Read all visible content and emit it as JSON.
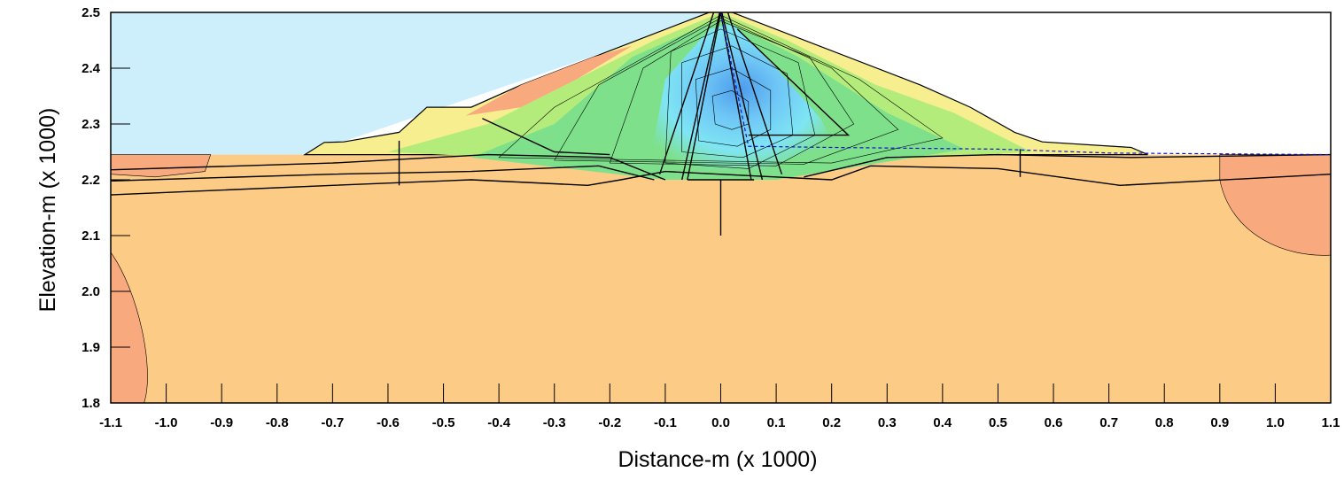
{
  "chart_data": {
    "type": "contour-section",
    "xlabel": "Distance-m (x  1000)",
    "ylabel": "Elevation-m (x  1000)",
    "xlim": [
      -1.1,
      1.1
    ],
    "ylim": [
      1.8,
      2.5
    ],
    "x_ticks": [
      "-1.1",
      "-1.0",
      "-0.9",
      "-0.8",
      "-0.7",
      "-0.6",
      "-0.5",
      "-0.4",
      "-0.3",
      "-0.2",
      "-0.1",
      "0.0",
      "0.1",
      "0.2",
      "0.3",
      "0.4",
      "0.5",
      "0.6",
      "0.7",
      "0.8",
      "0.9",
      "1.0",
      "1.1"
    ],
    "y_ticks": [
      "1.8",
      "1.9",
      "2.0",
      "2.1",
      "2.2",
      "2.3",
      "2.4",
      "2.5"
    ],
    "reservoir_level": 2.5,
    "tailwater_level": 2.245,
    "colors": {
      "reservoir": "#cdeefb",
      "foundation": "#fccb85",
      "foundation_dark": "#f8a97e",
      "shell": "#f7ee8f",
      "contour_mid": "#b3ec7b",
      "contour_green": "#7ee08b",
      "core_light": "#7fe5f4",
      "core": "#6fc7f6",
      "core_deep": "#4d9ceb",
      "phreatic_line": "#1010cc"
    }
  }
}
